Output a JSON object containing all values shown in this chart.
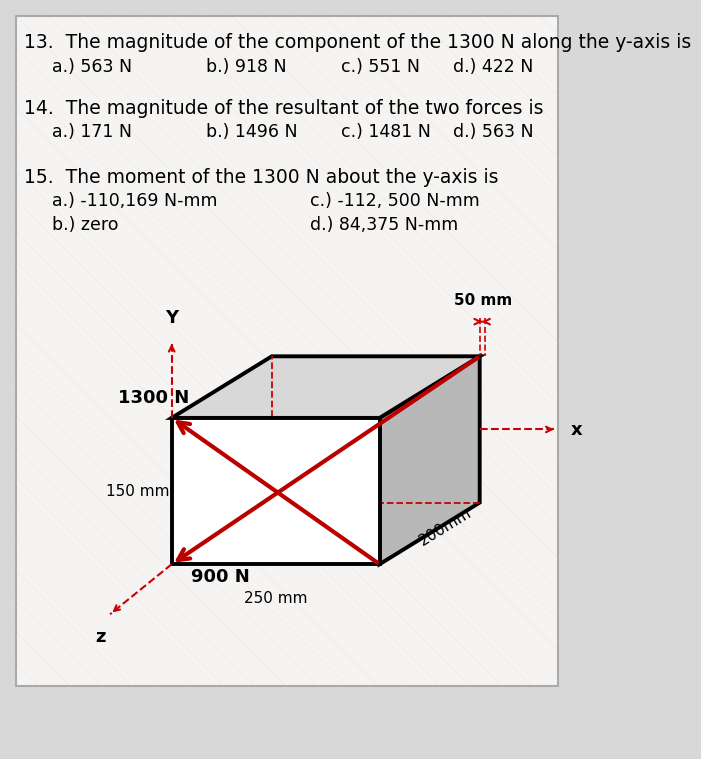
{
  "bg_color": "#d8d8d8",
  "panel_color": "#f2f0ee",
  "text_color": "#000000",
  "q13": {
    "question": "13.  The magnitude of the component of the 1300 N along the y-axis is",
    "a": "a.) 563 N",
    "b": "b.) 918 N",
    "c": "c.) 551 N",
    "d": "d.) 422 N"
  },
  "q14": {
    "question": "14.  The magnitude of the resultant of the two forces is",
    "a": "a.) 171 N",
    "b": "b.) 1496 N",
    "c": "c.) 1481 N",
    "d": "d.) 563 N"
  },
  "q15": {
    "question": "15.  The moment of the 1300 N about the y-axis is",
    "a": "a.) -110,169 N-mm",
    "b": "b.) zero",
    "c": "c.) -112, 500 N-mm",
    "d": "d.) 84,375 N-mm"
  },
  "arrow_color": "#bb0000",
  "dim_color": "#bb0000",
  "edge_color": "#000000",
  "edge_lw": 2.8
}
